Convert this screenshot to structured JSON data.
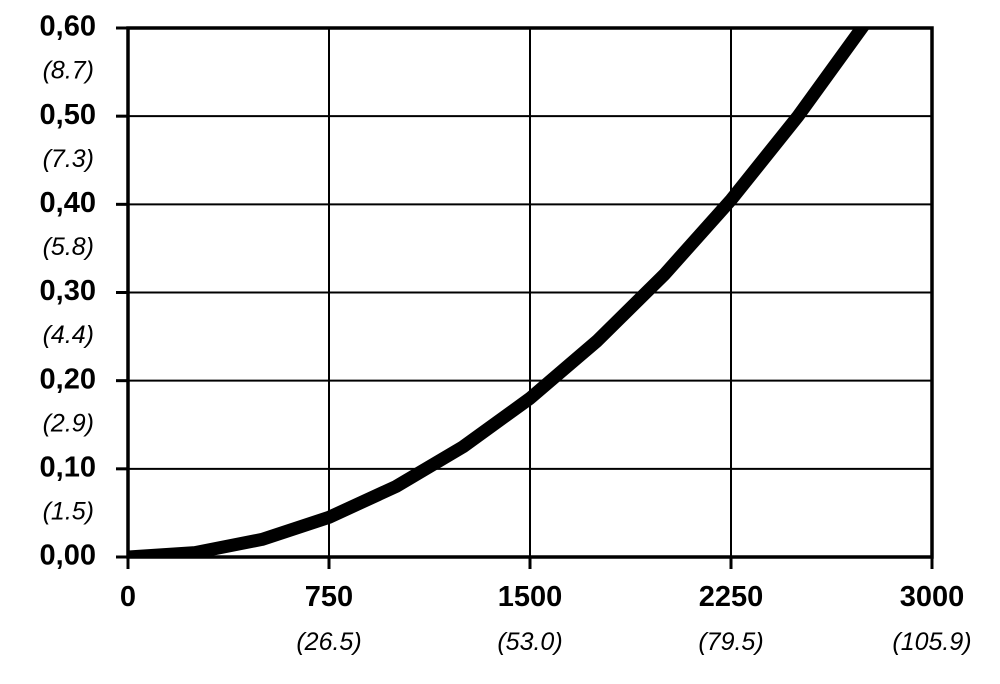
{
  "chart_data": {
    "type": "line",
    "title": "",
    "xlabel": "",
    "ylabel": "",
    "xlim": [
      0,
      3000
    ],
    "ylim": [
      0,
      0.6
    ],
    "grid": true,
    "x_ticks": [
      {
        "value": 0,
        "label": "0",
        "sublabel": ""
      },
      {
        "value": 750,
        "label": "750",
        "sublabel": "(26.5)"
      },
      {
        "value": 1500,
        "label": "1500",
        "sublabel": "(53.0)"
      },
      {
        "value": 2250,
        "label": "2250",
        "sublabel": "(79.5)"
      },
      {
        "value": 3000,
        "label": "3000",
        "sublabel": "(105.9)"
      }
    ],
    "y_ticks": [
      {
        "value": 0.0,
        "label": "0,00",
        "sublabel": ""
      },
      {
        "value": 0.1,
        "label": "0,10",
        "sublabel": "(1.5)"
      },
      {
        "value": 0.2,
        "label": "0,20",
        "sublabel": "(2.9)"
      },
      {
        "value": 0.3,
        "label": "0,30",
        "sublabel": "(4.4)"
      },
      {
        "value": 0.4,
        "label": "0,40",
        "sublabel": "(5.8)"
      },
      {
        "value": 0.5,
        "label": "0,50",
        "sublabel": "(7.3)"
      },
      {
        "value": 0.6,
        "label": "0,60",
        "sublabel": "(8.7)"
      }
    ],
    "series": [
      {
        "color": "#000000",
        "x": [
          0,
          250,
          500,
          750,
          1000,
          1250,
          1500,
          1750,
          2000,
          2250,
          2500,
          2750
        ],
        "y": [
          0.0,
          0.005,
          0.02,
          0.045,
          0.08,
          0.125,
          0.18,
          0.245,
          0.32,
          0.405,
          0.5,
          0.605
        ]
      }
    ]
  }
}
